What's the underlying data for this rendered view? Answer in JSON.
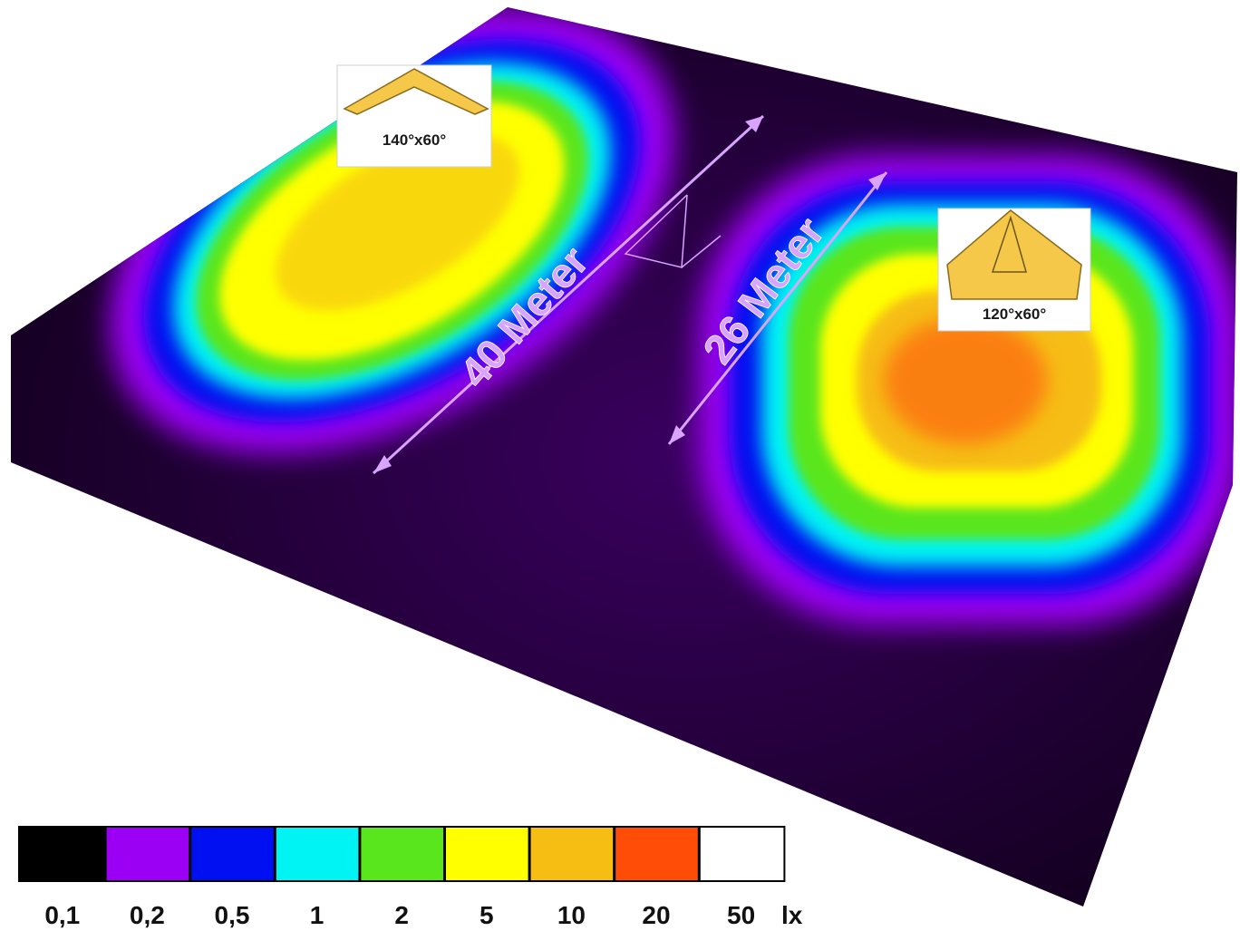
{
  "chart_data": {
    "type": "heatmap",
    "unit": "lx",
    "colorbar": {
      "ticks": [
        "0,1",
        "0,2",
        "0,5",
        "1",
        "2",
        "5",
        "10",
        "20",
        "50"
      ],
      "colors": [
        "#000000",
        "#9b00f5",
        "#0010f0",
        "#00f4f4",
        "#5ae61c",
        "#ffff00",
        "#f6bd12",
        "#ff4d08",
        "#ffffff"
      ]
    },
    "zones": [
      {
        "beam": "140°x60°",
        "distance_label": "40 Meter",
        "peak": "5",
        "lamp_shape": "wide-chevron"
      },
      {
        "beam": "120°x60°",
        "distance_label": "26 Meter",
        "peak": "10",
        "lamp_shape": "tall-cone"
      }
    ]
  },
  "colors": {
    "background": "#ffffff",
    "floor": "#1a0025",
    "arrow": "#d9a4ff",
    "lamp_fill": "#f5c84a"
  }
}
